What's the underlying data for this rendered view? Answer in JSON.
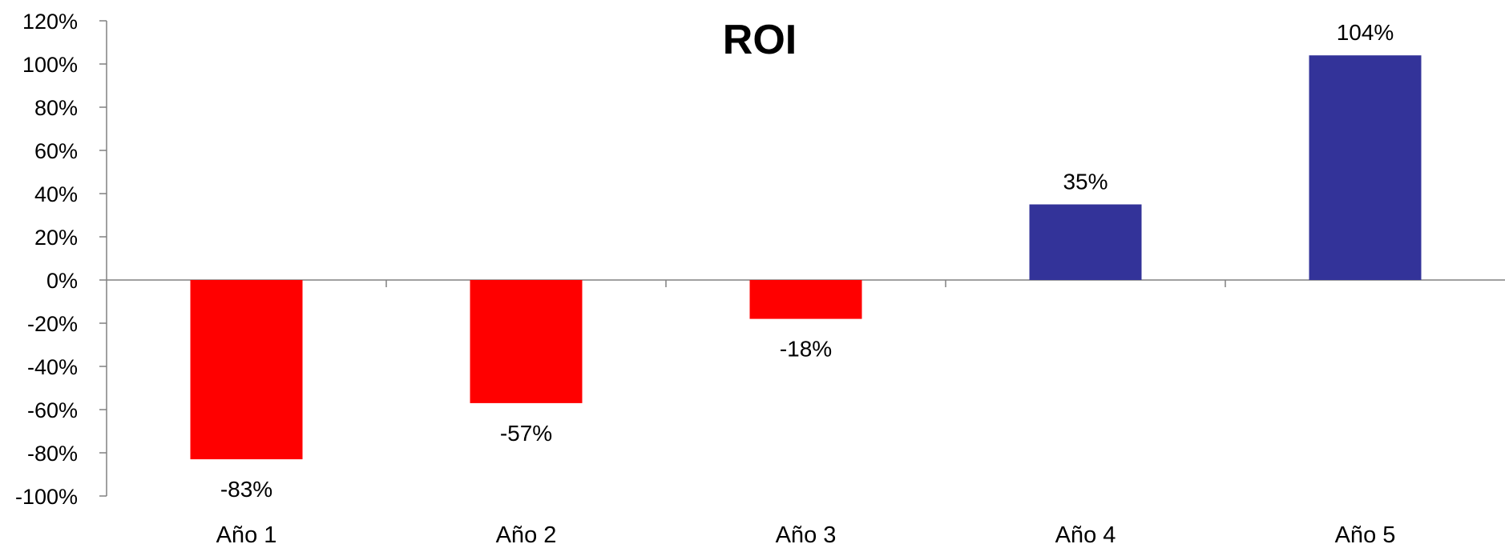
{
  "chart_data": {
    "type": "bar",
    "title": "ROI",
    "xlabel": "",
    "ylabel": "",
    "categories": [
      "Año 1",
      "Año 2",
      "Año 3",
      "Año 4",
      "Año 5"
    ],
    "values": [
      -83,
      -57,
      -18,
      35,
      104
    ],
    "data_labels": [
      "-83%",
      "-57%",
      "-18%",
      "35%",
      "104%"
    ],
    "ylim": [
      -100,
      120
    ],
    "yticks": [
      120,
      100,
      80,
      60,
      40,
      20,
      0,
      -20,
      -40,
      -60,
      -80,
      -100
    ],
    "ytick_labels": [
      "120%",
      "100%",
      "80%",
      "60%",
      "40%",
      "20%",
      "0%",
      "-20%",
      "-40%",
      "-60%",
      "-80%",
      "-100%"
    ],
    "grid": false,
    "legend": "none",
    "colors": {
      "negative": "#ff0000",
      "positive": "#333399",
      "axis": "#808080"
    }
  }
}
